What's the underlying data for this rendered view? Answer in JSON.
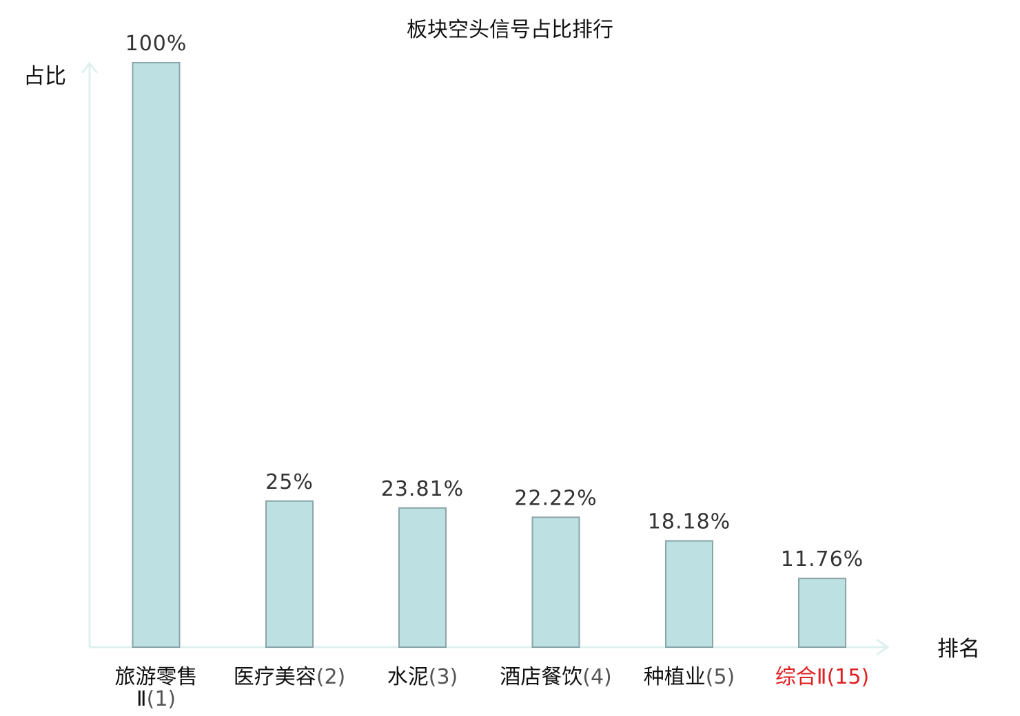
{
  "chart_data": {
    "type": "bar",
    "title": "板块空头信号占比排行",
    "ylabel": "占比",
    "xlabel": "排名",
    "ylim": [
      0,
      100
    ],
    "grid": false,
    "categories": [
      {
        "name": "旅游零售Ⅱ",
        "rank": "(1)",
        "highlight": false
      },
      {
        "name": "医疗美容",
        "rank": "(2)",
        "highlight": false
      },
      {
        "name": "水泥",
        "rank": "(3)",
        "highlight": false
      },
      {
        "name": "酒店餐饮",
        "rank": "(4)",
        "highlight": false
      },
      {
        "name": "种植业",
        "rank": "(5)",
        "highlight": false
      },
      {
        "name": "综合Ⅱ",
        "rank": "(15)",
        "highlight": true
      }
    ],
    "values": [
      100,
      25,
      23.81,
      22.22,
      18.18,
      11.76
    ],
    "value_labels": [
      "100%",
      "25%",
      "23.81%",
      "22.22%",
      "18.18%",
      "11.76%"
    ],
    "colors": {
      "bar_fill": "#bde0e2",
      "bar_stroke": "#8aa5a8",
      "axis": "#dff1ef",
      "highlight": "#e02020"
    }
  }
}
